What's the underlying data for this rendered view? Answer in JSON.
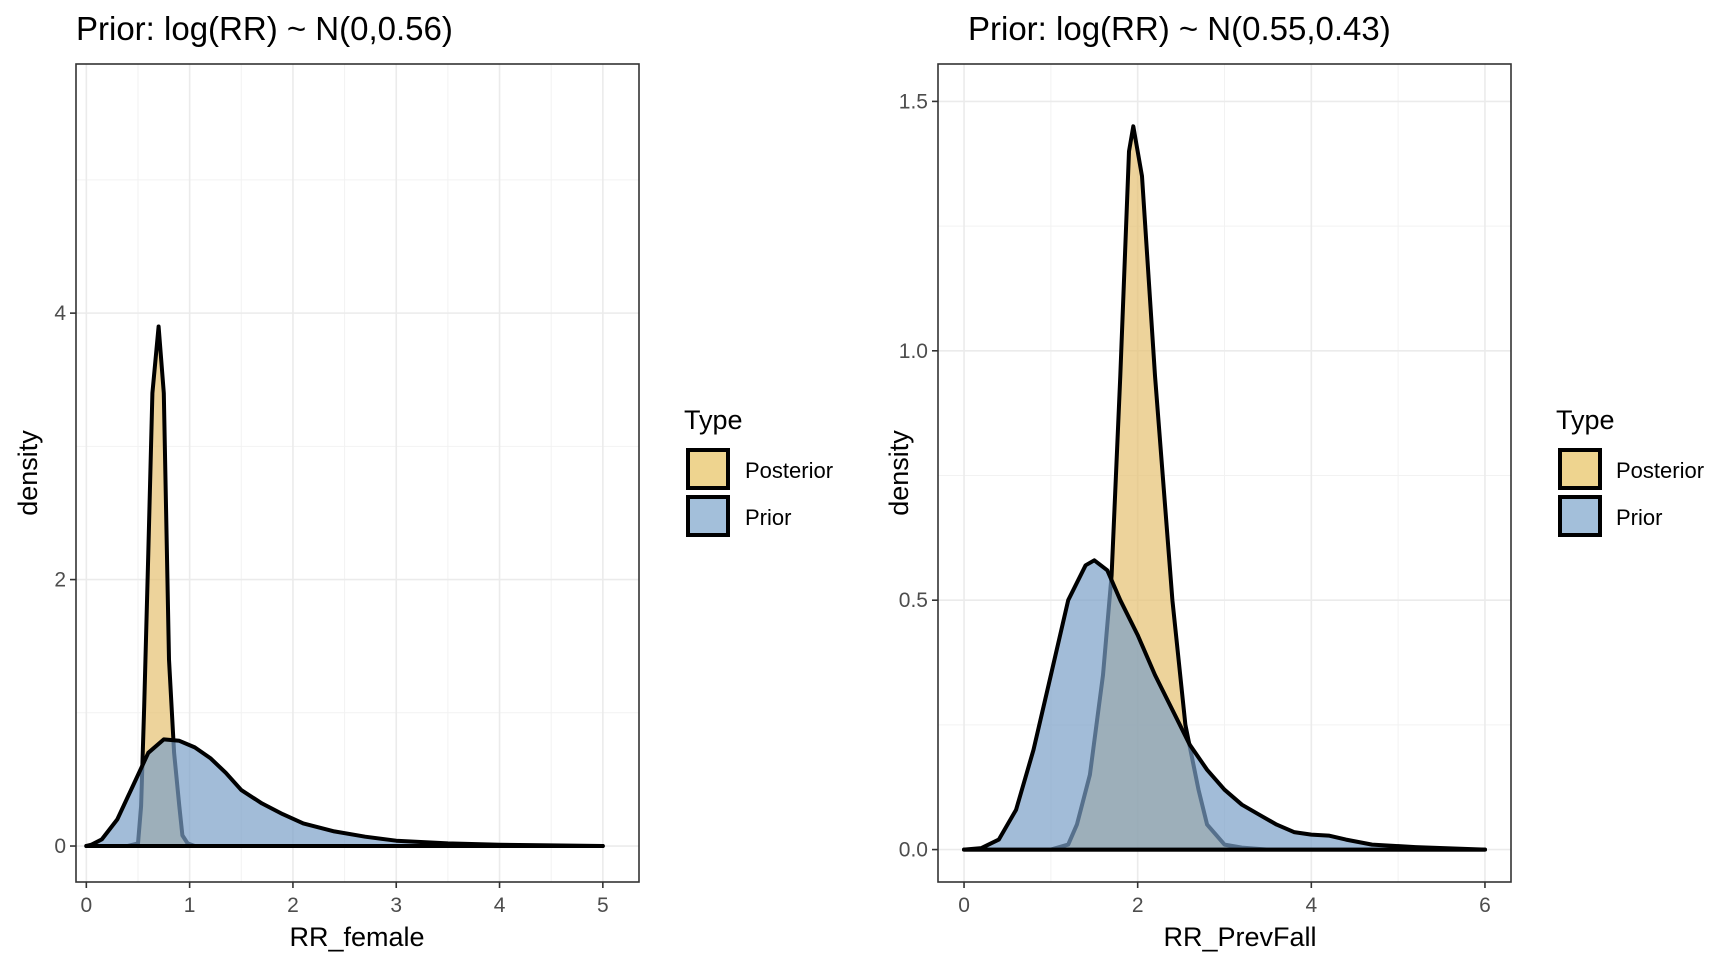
{
  "chart_data": [
    {
      "type": "area",
      "title": "Prior: log(RR) ~ N(0,0.56)",
      "xlabel": "RR_female",
      "ylabel": "density",
      "xlim": [
        -0.1,
        5.35
      ],
      "ylim": [
        -0.27,
        5.87
      ],
      "x_ticks": [
        0,
        1,
        2,
        3,
        4,
        5
      ],
      "x_tick_labels": [
        "0",
        "1",
        "2",
        "3",
        "4",
        "5"
      ],
      "y_ticks": [
        0,
        2,
        4
      ],
      "y_tick_labels": [
        "0",
        "2",
        "4"
      ],
      "grid": true,
      "legend": {
        "title": "Type",
        "position": "right",
        "entries": [
          "Posterior",
          "Prior"
        ]
      },
      "series": [
        {
          "name": "Posterior",
          "color": "#e6c170",
          "points": [
            [
              0,
              0
            ],
            [
              0.4,
              0
            ],
            [
              0.5,
              0.02
            ],
            [
              0.53,
              0.3
            ],
            [
              0.56,
              1.05
            ],
            [
              0.6,
              2.2
            ],
            [
              0.64,
              3.4
            ],
            [
              0.7,
              3.9
            ],
            [
              0.75,
              3.4
            ],
            [
              0.8,
              1.4
            ],
            [
              0.85,
              0.7
            ],
            [
              0.9,
              0.3
            ],
            [
              0.93,
              0.08
            ],
            [
              0.98,
              0.02
            ],
            [
              1.05,
              0
            ],
            [
              5,
              0
            ]
          ]
        },
        {
          "name": "Prior",
          "color": "#7aa0c7",
          "points": [
            [
              0,
              0
            ],
            [
              0.05,
              0.01
            ],
            [
              0.15,
              0.05
            ],
            [
              0.3,
              0.2
            ],
            [
              0.45,
              0.45
            ],
            [
              0.6,
              0.7
            ],
            [
              0.75,
              0.8
            ],
            [
              0.9,
              0.79
            ],
            [
              1.05,
              0.74
            ],
            [
              1.2,
              0.66
            ],
            [
              1.35,
              0.55
            ],
            [
              1.5,
              0.42
            ],
            [
              1.7,
              0.32
            ],
            [
              1.9,
              0.24
            ],
            [
              2.1,
              0.17
            ],
            [
              2.4,
              0.11
            ],
            [
              2.7,
              0.07
            ],
            [
              3.0,
              0.04
            ],
            [
              3.5,
              0.02
            ],
            [
              4.0,
              0.01
            ],
            [
              4.5,
              0.005
            ],
            [
              5.0,
              0
            ]
          ]
        }
      ]
    },
    {
      "type": "area",
      "title": "Prior: log(RR) ~ N(0.55,0.43)",
      "xlabel": "RR_PrevFall",
      "ylabel": "density",
      "xlim": [
        -0.3,
        6.3
      ],
      "ylim": [
        -0.065,
        1.575
      ],
      "x_ticks": [
        0,
        2,
        4,
        6
      ],
      "x_tick_labels": [
        "0",
        "2",
        "4",
        "6"
      ],
      "y_ticks": [
        0.0,
        0.5,
        1.0,
        1.5
      ],
      "y_tick_labels": [
        "0.0",
        "0.5",
        "1.0",
        "1.5"
      ],
      "grid": true,
      "legend": {
        "title": "Type",
        "position": "right",
        "entries": [
          "Posterior",
          "Prior"
        ]
      },
      "series": [
        {
          "name": "Posterior",
          "color": "#e6c170",
          "points": [
            [
              0,
              0
            ],
            [
              1.0,
              0
            ],
            [
              1.2,
              0.01
            ],
            [
              1.3,
              0.05
            ],
            [
              1.45,
              0.15
            ],
            [
              1.6,
              0.35
            ],
            [
              1.7,
              0.55
            ],
            [
              1.8,
              0.95
            ],
            [
              1.9,
              1.4
            ],
            [
              1.95,
              1.45
            ],
            [
              2.05,
              1.35
            ],
            [
              2.2,
              0.95
            ],
            [
              2.4,
              0.5
            ],
            [
              2.55,
              0.25
            ],
            [
              2.7,
              0.12
            ],
            [
              2.8,
              0.05
            ],
            [
              2.9,
              0.03
            ],
            [
              3.0,
              0.01
            ],
            [
              3.2,
              0.004
            ],
            [
              3.5,
              0
            ],
            [
              6,
              0
            ]
          ]
        },
        {
          "name": "Prior",
          "color": "#7aa0c7",
          "points": [
            [
              0,
              0
            ],
            [
              0.2,
              0.003
            ],
            [
              0.4,
              0.02
            ],
            [
              0.6,
              0.08
            ],
            [
              0.8,
              0.2
            ],
            [
              1.0,
              0.35
            ],
            [
              1.2,
              0.5
            ],
            [
              1.4,
              0.57
            ],
            [
              1.5,
              0.58
            ],
            [
              1.65,
              0.56
            ],
            [
              1.8,
              0.5
            ],
            [
              2.0,
              0.43
            ],
            [
              2.2,
              0.35
            ],
            [
              2.4,
              0.28
            ],
            [
              2.6,
              0.21
            ],
            [
              2.8,
              0.16
            ],
            [
              3.0,
              0.12
            ],
            [
              3.2,
              0.09
            ],
            [
              3.4,
              0.07
            ],
            [
              3.6,
              0.05
            ],
            [
              3.8,
              0.035
            ],
            [
              4.0,
              0.03
            ],
            [
              4.2,
              0.028
            ],
            [
              4.4,
              0.02
            ],
            [
              4.7,
              0.01
            ],
            [
              5.2,
              0.005
            ],
            [
              6.0,
              0
            ]
          ]
        }
      ]
    }
  ]
}
